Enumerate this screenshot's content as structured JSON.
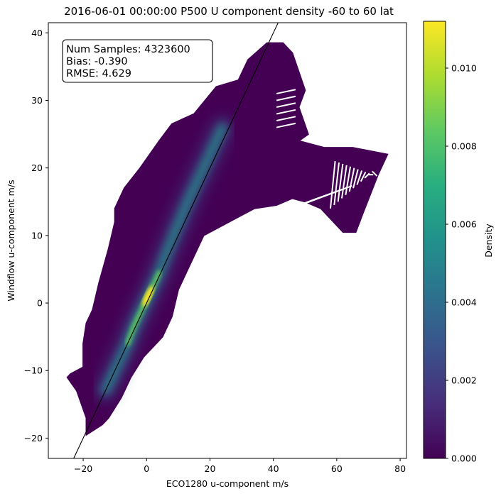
{
  "chart_data": {
    "type": "scatter",
    "title": "2016-06-01 00:00:00 P500 U component density -60 to 60 lat",
    "xlabel": "ECO1280 u-component m/s",
    "ylabel": "Windflow u-component m/s",
    "xlim": [
      -31,
      82
    ],
    "ylim": [
      -23,
      41.5
    ],
    "x_ticks": [
      "−20",
      "0",
      "20",
      "40",
      "60",
      "80"
    ],
    "y_ticks": [
      "−20",
      "−10",
      "0",
      "10",
      "20",
      "30",
      "40"
    ],
    "colorbar": {
      "label": "Density",
      "range": [
        0.0,
        0.0112
      ],
      "ticks": [
        "0.000",
        "0.002",
        "0.004",
        "0.006",
        "0.008",
        "0.010"
      ],
      "colormap": "viridis"
    },
    "reference_line": {
      "type": "identity",
      "color": "#000000"
    },
    "stats": [
      "Num Samples: 4323600",
      "Bias: -0.390",
      "RMSE: 4.629"
    ],
    "point_cloud_outline": [
      [
        -19,
        -19.5
      ],
      [
        -19,
        -17
      ],
      [
        -22,
        -13
      ],
      [
        -25,
        -11
      ],
      [
        -24,
        -10.5
      ],
      [
        -20,
        -9.5
      ],
      [
        -20,
        -6
      ],
      [
        -19,
        -3
      ],
      [
        -17,
        -1
      ],
      [
        -15,
        3
      ],
      [
        -12,
        8
      ],
      [
        -10,
        12
      ],
      [
        -10,
        14
      ],
      [
        -7,
        17
      ],
      [
        -2,
        20
      ],
      [
        4,
        24
      ],
      [
        8,
        26.5
      ],
      [
        15,
        28
      ],
      [
        22,
        32
      ],
      [
        29,
        33
      ],
      [
        32,
        36
      ],
      [
        38,
        38.5
      ],
      [
        43,
        38.5
      ],
      [
        46,
        37
      ],
      [
        50,
        31.5
      ],
      [
        48,
        29
      ],
      [
        51,
        25
      ],
      [
        48,
        24
      ],
      [
        56,
        23
      ],
      [
        65,
        23
      ],
      [
        76,
        22
      ],
      [
        73,
        19
      ],
      [
        68,
        13
      ],
      [
        66,
        10.5
      ],
      [
        62,
        10.5
      ],
      [
        55,
        14
      ],
      [
        50,
        15
      ],
      [
        46,
        15.5
      ],
      [
        41,
        14.5
      ],
      [
        34,
        14
      ],
      [
        26,
        12
      ],
      [
        18,
        10
      ],
      [
        14,
        6
      ],
      [
        10,
        2
      ],
      [
        9,
        0
      ],
      [
        8,
        -2
      ],
      [
        5,
        -5
      ],
      [
        -1,
        -8
      ],
      [
        -5,
        -11
      ],
      [
        -8,
        -14
      ],
      [
        -12,
        -17
      ],
      [
        -14,
        -18
      ]
    ],
    "density_ridge": [
      [
        -13,
        -13
      ],
      [
        -9,
        -9
      ],
      [
        -6,
        -6
      ],
      [
        -4,
        -3.5
      ],
      [
        -2,
        -1.5
      ],
      [
        0,
        0.5
      ],
      [
        2,
        2.5
      ],
      [
        4,
        4.5
      ],
      [
        6,
        7
      ],
      [
        9,
        10.5
      ],
      [
        13,
        15
      ],
      [
        18,
        20
      ],
      [
        24,
        26
      ]
    ],
    "density_peak": [
      0.5,
      1.0
    ],
    "density_peak_value": 0.0112
  }
}
